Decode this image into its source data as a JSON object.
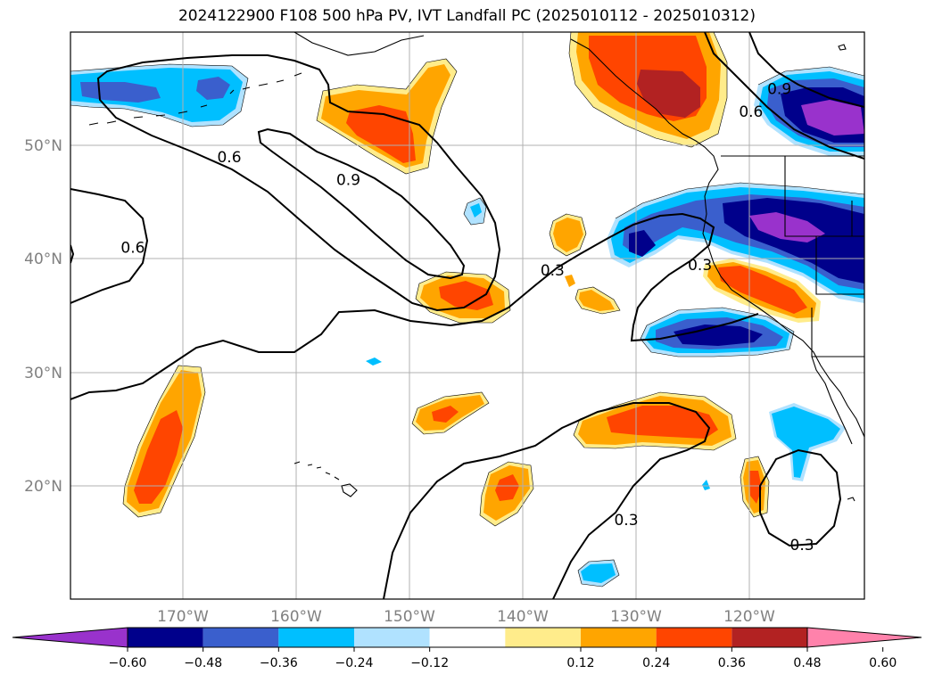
{
  "title": "2024122900 F108 500 hPa PV, IVT Landfall PC (2025010112 - 2025010312)",
  "map": {
    "lon_labels": [
      "170°W",
      "160°W",
      "150°W",
      "140°W",
      "130°W",
      "120°W"
    ],
    "lat_labels": [
      "50°N",
      "40°N",
      "30°N",
      "20°N"
    ],
    "contour_labels": [
      {
        "value": "0.6",
        "lon": -166,
        "lat": 49
      },
      {
        "value": "0.9",
        "lon": -155.5,
        "lat": 47
      },
      {
        "value": "0.6",
        "lon": -174.5,
        "lat": 41
      },
      {
        "value": "0.3",
        "lon": -137.5,
        "lat": 39
      },
      {
        "value": "0.3",
        "lon": -124.5,
        "lat": 39.5
      },
      {
        "value": "0.9",
        "lon": -117.5,
        "lat": 55
      },
      {
        "value": "0.6",
        "lon": -120,
        "lat": 53
      },
      {
        "value": "0.3",
        "lon": -131,
        "lat": 17
      },
      {
        "value": "0.3",
        "lon": -115.5,
        "lat": 14.8
      }
    ]
  },
  "colorbar": {
    "ticks": [
      "−0.60",
      "−0.48",
      "−0.36",
      "−0.24",
      "−0.12",
      "0.12",
      "0.24",
      "0.36",
      "0.48",
      "0.60"
    ],
    "colors": [
      "#9932cc",
      "#00008b",
      "#3a5fcd",
      "#00bfff",
      "#b0e2ff",
      "#ffffff",
      "#ffec8b",
      "#ffa500",
      "#ff4500",
      "#b22222",
      "#ff82ab"
    ]
  }
}
